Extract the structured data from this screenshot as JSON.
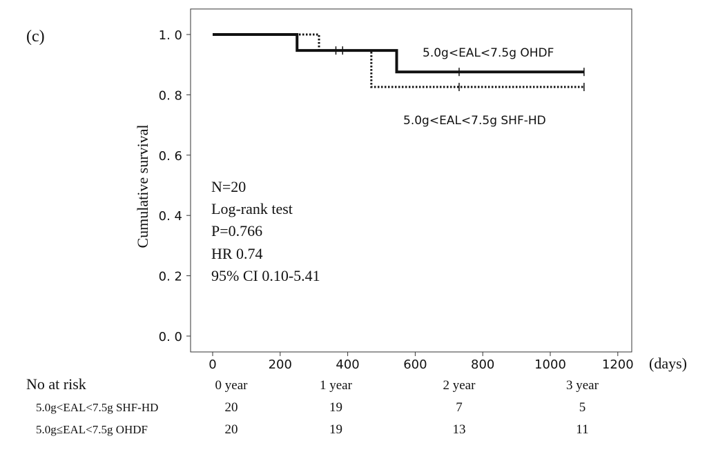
{
  "panel_label": "(c)",
  "chart_data": {
    "type": "line",
    "title": "",
    "xlabel": "(days)",
    "ylabel": "Cumulative survival",
    "xlim": [
      -40,
      1240
    ],
    "ylim": [
      0,
      1.0
    ],
    "x_ticks": [
      0,
      200,
      400,
      600,
      800,
      1000,
      1200
    ],
    "y_ticks": [
      {
        "value": 0.0,
        "label": "0. 0"
      },
      {
        "value": 0.2,
        "label": "0. 2"
      },
      {
        "value": 0.4,
        "label": "0. 4"
      },
      {
        "value": 0.6,
        "label": "0. 6"
      },
      {
        "value": 0.8,
        "label": "0. 8"
      },
      {
        "value": 1.0,
        "label": "1. 0"
      }
    ],
    "grid": false,
    "series": [
      {
        "name": "5.0g<EAL<7.5g OHDF",
        "line_style": "solid",
        "color": "#111111",
        "steps": [
          [
            0,
            1.0
          ],
          [
            250,
            0.947
          ],
          [
            545,
            0.876
          ],
          [
            1100,
            0.876
          ]
        ],
        "censored": [
          [
            365,
            0.947
          ],
          [
            730,
            0.876
          ],
          [
            1100,
            0.876
          ]
        ]
      },
      {
        "name": "5.0g<EAL<7.5g SHF-HD",
        "line_style": "dotted",
        "color": "#111111",
        "steps": [
          [
            0,
            1.0
          ],
          [
            315,
            0.947
          ],
          [
            470,
            0.826
          ],
          [
            1100,
            0.826
          ]
        ],
        "censored": [
          [
            385,
            0.947
          ],
          [
            730,
            0.826
          ],
          [
            1100,
            0.826
          ]
        ]
      }
    ],
    "annotations": [
      "N=20",
      "Log-rank test",
      "P=0.766",
      "HR 0.74",
      "95% CI 0.10-5.41"
    ],
    "risk_table": {
      "title": "No at risk",
      "timepoints": [
        {
          "x": 0,
          "label": "0 year"
        },
        {
          "x": 365,
          "label": "1 year"
        },
        {
          "x": 730,
          "label": "2 year"
        },
        {
          "x": 1095,
          "label": "3 year"
        }
      ],
      "rows": [
        {
          "label": "5.0g<EAL<7.5g SHF-HD",
          "values": [
            20,
            19,
            7,
            5
          ]
        },
        {
          "label": "5.0g≤EAL<7.5g OHDF",
          "values": [
            20,
            19,
            13,
            11
          ]
        }
      ]
    }
  }
}
